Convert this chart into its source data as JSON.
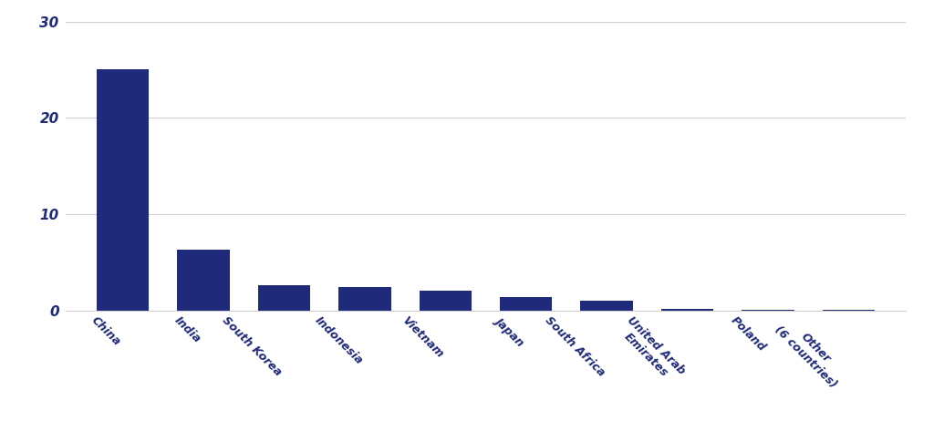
{
  "categories": [
    "China",
    "India",
    "South Korea",
    "Indonesia",
    "Vietnam",
    "Japan",
    "South Africa",
    "United Arab\nEmirates",
    "Poland",
    "Other\n(6 countries)"
  ],
  "values": [
    25.0,
    6.3,
    2.6,
    2.4,
    2.0,
    1.4,
    1.0,
    0.12,
    0.08,
    0.08
  ],
  "bar_color": "#1F2A7A",
  "background_color": "#ffffff",
  "ylim": [
    0,
    30
  ],
  "yticks": [
    0,
    10,
    20,
    30
  ],
  "grid_color": "#d0d0d0",
  "tick_label_color": "#1F2A7A",
  "ytick_fontsize": 11,
  "xtick_fontsize": 9,
  "bar_width": 0.65
}
